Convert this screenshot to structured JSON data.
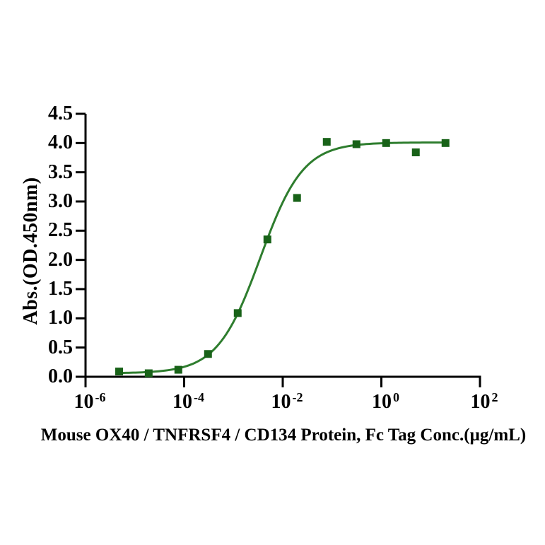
{
  "chart_data": {
    "type": "scatter",
    "title": "",
    "xlabel": "Mouse OX40 / TNFRSF4 / CD134 Protein, Fc Tag Conc.(µg/mL)",
    "ylabel": "Abs.(OD.450nm)",
    "x_scale": "log10",
    "xlim_log10": [
      -6,
      2
    ],
    "ylim": [
      0,
      4.5
    ],
    "grid": false,
    "legend": false,
    "x_tick_exponents": [
      -6,
      -4,
      -2,
      0,
      2
    ],
    "y_tick_labels": [
      "0.0",
      "0.5",
      "1.0",
      "1.5",
      "2.0",
      "2.5",
      "3.0",
      "3.5",
      "4.0",
      "4.5"
    ],
    "points": [
      {
        "x": 4.8e-06,
        "y": 0.09
      },
      {
        "x": 1.91e-05,
        "y": 0.06
      },
      {
        "x": 7.63e-05,
        "y": 0.12
      },
      {
        "x": 0.000305,
        "y": 0.39
      },
      {
        "x": 0.00122,
        "y": 1.09
      },
      {
        "x": 0.00488,
        "y": 2.35
      },
      {
        "x": 0.0195,
        "y": 3.06
      },
      {
        "x": 0.0781,
        "y": 4.02
      },
      {
        "x": 0.3125,
        "y": 3.98
      },
      {
        "x": 1.25,
        "y": 4.0
      },
      {
        "x": 5,
        "y": 3.84
      },
      {
        "x": 20,
        "y": 4.0
      }
    ],
    "fit": {
      "model": "4PL",
      "bottom": 0.06,
      "top": 4.01,
      "ec50": 0.0035,
      "hill": 1.0,
      "x_start": 4.8e-06,
      "x_end": 20
    },
    "colors": {
      "marker": "#186218",
      "line": "#2e7d2e",
      "axis": "#000000",
      "text": "#000000",
      "background": "#ffffff"
    }
  }
}
